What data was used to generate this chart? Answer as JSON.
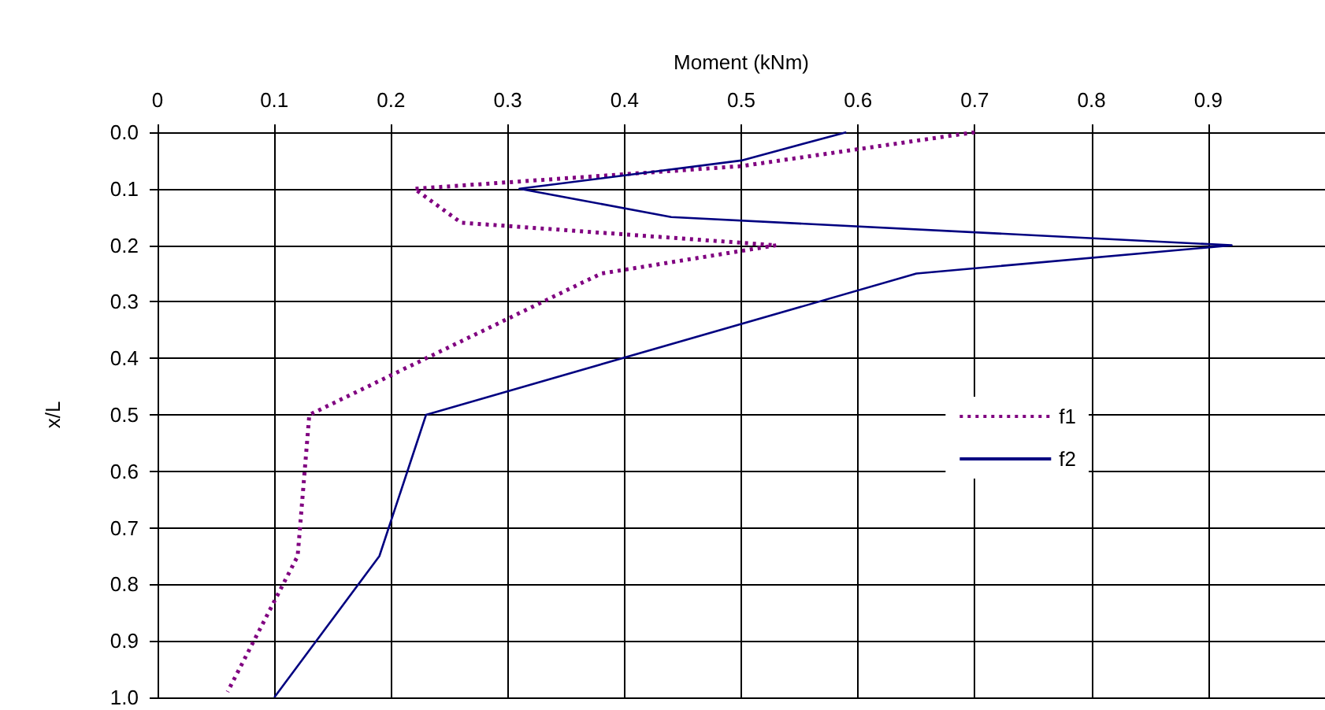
{
  "chart_data": {
    "type": "line",
    "xlabel": "Moment (kNm)",
    "ylabel": "x/L",
    "xlim": [
      0,
      1
    ],
    "xticks": [
      0,
      0.1,
      0.2,
      0.3,
      0.4,
      0.5,
      0.6,
      0.7,
      0.8,
      0.9
    ],
    "ylim": [
      1,
      0
    ],
    "yticks": [
      {
        "value": 0,
        "label": "0.0"
      },
      {
        "value": 0.1,
        "label": "0.1"
      },
      {
        "value": 0.2,
        "label": "0.2"
      },
      {
        "value": 0.3,
        "label": "0.3"
      },
      {
        "value": 0.4,
        "label": "0.4"
      },
      {
        "value": 0.5,
        "label": "0.5"
      },
      {
        "value": 0.6,
        "label": "0.6"
      },
      {
        "value": 0.7,
        "label": "0.7"
      },
      {
        "value": 0.8,
        "label": "0.8"
      },
      {
        "value": 0.9,
        "label": "0.9"
      },
      {
        "value": 1,
        "label": "1.0"
      }
    ],
    "grid": true,
    "legend": "right",
    "marker": "none",
    "series": [
      {
        "name": "f1",
        "color": "#800080",
        "line_style": "dotted",
        "x": [
          0.7,
          0.5,
          0.22,
          0.26,
          0.53,
          0.38,
          0.13,
          0.12,
          0.06
        ],
        "values": [
          0,
          0.06,
          0.1,
          0.16,
          0.2,
          0.25,
          0.5,
          0.75,
          0.99
        ]
      },
      {
        "name": "f2",
        "color": "#000080",
        "line_style": "solid",
        "x": [
          0.59,
          0.5,
          0.31,
          0.44,
          0.92,
          0.65,
          0.23,
          0.19,
          0.1
        ],
        "values": [
          0,
          0.05,
          0.1,
          0.15,
          0.2,
          0.25,
          0.5,
          0.75,
          1
        ]
      }
    ]
  }
}
